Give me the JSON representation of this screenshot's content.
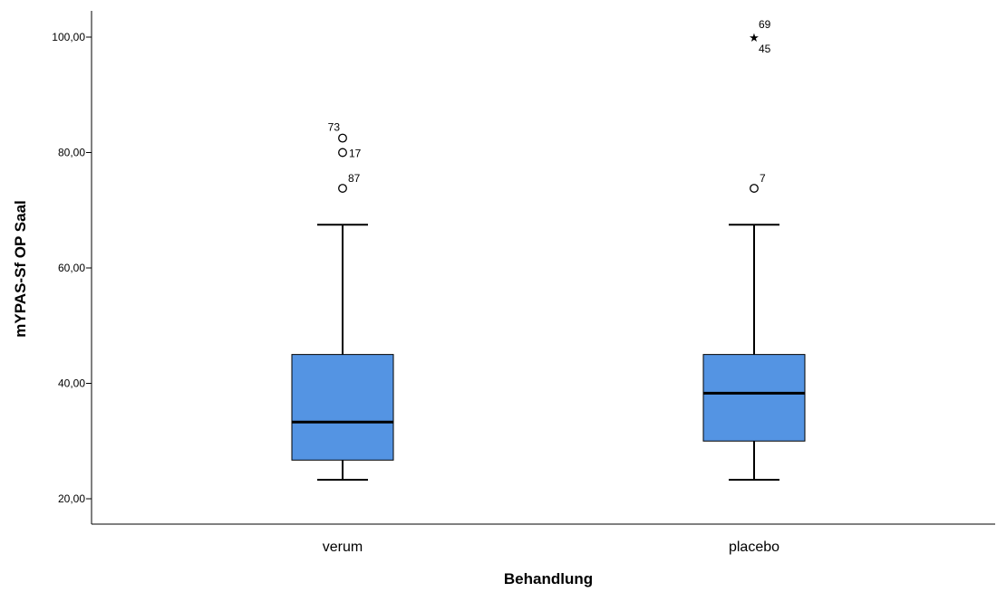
{
  "chart_data": {
    "type": "boxplot",
    "xlabel": "Behandlung",
    "ylabel": "mYPAS-Sf OP Saal",
    "ylim": [
      17.5,
      105
    ],
    "yticks": [
      {
        "value": 20,
        "label": "20,00"
      },
      {
        "value": 40,
        "label": "40,00"
      },
      {
        "value": 60,
        "label": "60,00"
      },
      {
        "value": 80,
        "label": "80,00"
      },
      {
        "value": 100,
        "label": "100,00"
      }
    ],
    "categories": [
      "verum",
      "placebo"
    ],
    "box_color": "#5494E3",
    "boxes": [
      {
        "category": "verum",
        "whisker_low": 23.3,
        "q1": 26.7,
        "median": 33.3,
        "q3": 45.0,
        "whisker_high": 67.5,
        "outliers": [
          {
            "value": 82.5,
            "label": "73",
            "marker": "circle"
          },
          {
            "value": 80.0,
            "label": "17",
            "marker": "circle"
          },
          {
            "value": 73.8,
            "label": "87",
            "marker": "circle"
          }
        ]
      },
      {
        "category": "placebo",
        "whisker_low": 23.3,
        "q1": 30.0,
        "median": 38.3,
        "q3": 45.0,
        "whisker_high": 67.5,
        "outliers": [
          {
            "value": 73.8,
            "label": "7",
            "marker": "circle"
          }
        ],
        "extremes": [
          {
            "value": 100.0,
            "labels": [
              "69",
              "45"
            ],
            "marker": "star"
          }
        ]
      }
    ]
  }
}
